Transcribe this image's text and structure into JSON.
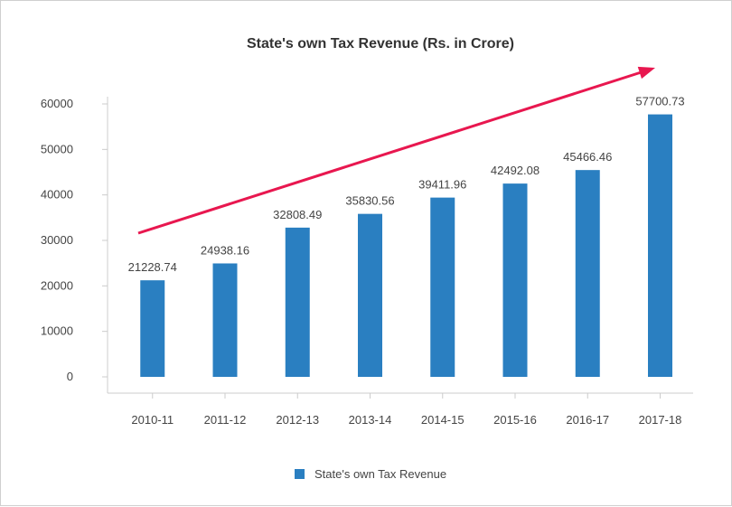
{
  "chart_data": {
    "type": "bar",
    "title": "State's own Tax Revenue (Rs. in Crore)",
    "categories": [
      "2010-11",
      "2011-12",
      "2012-13",
      "2013-14",
      "2014-15",
      "2015-16",
      "2016-17",
      "2017-18"
    ],
    "series": [
      {
        "name": "State's own Tax Revenue",
        "values": [
          21228.74,
          24938.16,
          32808.49,
          35830.56,
          39411.96,
          42492.08,
          45466.46,
          57700.73
        ],
        "data_labels": [
          "21228.74",
          "24938.16",
          "32808.49",
          "35830.56",
          "39411.96",
          "42492.08",
          "45466.46",
          "57700.73"
        ]
      }
    ],
    "ylim": [
      0,
      60000
    ],
    "yticks": [
      "0",
      "10000",
      "20000",
      "30000",
      "40000",
      "50000",
      "60000"
    ],
    "grid": false,
    "legend": "bottom",
    "annotation": "trend-arrow",
    "colors": {
      "bar": "#2a7fc1",
      "arrow": "#e8174f",
      "axis": "#cccccc",
      "text": "#444444"
    }
  }
}
